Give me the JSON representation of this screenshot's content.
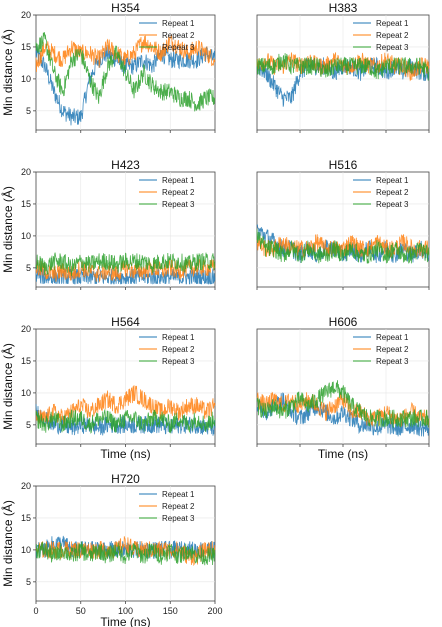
{
  "colors": {
    "repeat_1": "#1f77b4",
    "repeat_2": "#ff7f0e",
    "repeat_3": "#2ca02c"
  },
  "chart_data": [
    {
      "type": "line",
      "title": "H354",
      "ylabel": "Min distance (Å)",
      "xlabel": "",
      "xlim": [
        0,
        200
      ],
      "ylim": [
        2,
        20
      ],
      "yticks": [
        5,
        10,
        15,
        20
      ],
      "xticks": [],
      "series": [
        {
          "name": "Repeat 1",
          "x": [
            0,
            10,
            20,
            30,
            40,
            50,
            60,
            70,
            80,
            90,
            100,
            110,
            120,
            130,
            140,
            150,
            160,
            170,
            180,
            190,
            200
          ],
          "values": [
            14,
            12,
            8,
            5,
            4,
            4,
            10,
            13,
            14,
            13,
            12,
            12,
            13,
            12,
            14,
            13,
            13,
            13,
            13,
            14,
            13
          ]
        },
        {
          "name": "Repeat 2",
          "x": [
            0,
            10,
            20,
            30,
            40,
            50,
            60,
            70,
            80,
            90,
            100,
            110,
            120,
            130,
            140,
            150,
            160,
            170,
            180,
            190,
            200
          ],
          "values": [
            12,
            15,
            14,
            13,
            15,
            14,
            14,
            13,
            15,
            14,
            13,
            14,
            16,
            15,
            14,
            16,
            15,
            14,
            15,
            14,
            13
          ]
        },
        {
          "name": "Repeat 3",
          "x": [
            0,
            10,
            20,
            30,
            40,
            50,
            60,
            70,
            80,
            90,
            100,
            110,
            120,
            130,
            140,
            150,
            160,
            170,
            180,
            190,
            200
          ],
          "values": [
            15,
            16,
            11,
            8,
            13,
            14,
            10,
            7,
            12,
            14,
            11,
            8,
            11,
            9,
            8,
            8,
            7,
            7,
            6,
            7,
            7
          ]
        }
      ],
      "legend": "top-right"
    },
    {
      "type": "line",
      "title": "H383",
      "ylabel": "",
      "xlabel": "",
      "xlim": [
        0,
        200
      ],
      "ylim": [
        2,
        20
      ],
      "yticks": [],
      "xticks": [],
      "series": [
        {
          "name": "Repeat 1",
          "x": [
            0,
            10,
            20,
            30,
            40,
            50,
            60,
            70,
            80,
            90,
            100,
            110,
            120,
            130,
            140,
            150,
            160,
            170,
            180,
            190,
            200
          ],
          "values": [
            12,
            11,
            9,
            7,
            7,
            11,
            12,
            12,
            12,
            11,
            12,
            12,
            11,
            12,
            12,
            11,
            12,
            11,
            12,
            11,
            11
          ]
        },
        {
          "name": "Repeat 2",
          "x": [
            0,
            10,
            20,
            30,
            40,
            50,
            60,
            70,
            80,
            90,
            100,
            110,
            120,
            130,
            140,
            150,
            160,
            170,
            180,
            190,
            200
          ],
          "values": [
            12,
            13,
            12,
            12,
            13,
            12,
            13,
            12,
            12,
            13,
            12,
            12,
            13,
            12,
            12,
            13,
            12,
            12,
            11,
            12,
            12
          ]
        },
        {
          "name": "Repeat 3",
          "x": [
            0,
            10,
            20,
            30,
            40,
            50,
            60,
            70,
            80,
            90,
            100,
            110,
            120,
            130,
            140,
            150,
            160,
            170,
            180,
            190,
            200
          ],
          "values": [
            12,
            12,
            12,
            13,
            12,
            12,
            12,
            12,
            11,
            12,
            12,
            12,
            12,
            12,
            11,
            12,
            12,
            12,
            12,
            12,
            11
          ]
        }
      ],
      "legend": "top-right"
    },
    {
      "type": "line",
      "title": "H423",
      "ylabel": "Min distance (Å)",
      "xlabel": "",
      "xlim": [
        0,
        200
      ],
      "ylim": [
        2,
        20
      ],
      "yticks": [
        5,
        10,
        15,
        20
      ],
      "xticks": [],
      "series": [
        {
          "name": "Repeat 1",
          "x": [
            0,
            10,
            20,
            30,
            40,
            50,
            60,
            70,
            80,
            90,
            100,
            110,
            120,
            130,
            140,
            150,
            160,
            170,
            180,
            190,
            200
          ],
          "values": [
            4,
            3.5,
            3.5,
            3.5,
            3.5,
            3.5,
            3.5,
            3.5,
            3.5,
            3.5,
            3.5,
            3.5,
            3.5,
            3.5,
            3.5,
            3.5,
            3.5,
            3.5,
            3.5,
            3.5,
            3.5
          ]
        },
        {
          "name": "Repeat 2",
          "x": [
            0,
            10,
            20,
            30,
            40,
            50,
            60,
            70,
            80,
            90,
            100,
            110,
            120,
            130,
            140,
            150,
            160,
            170,
            180,
            190,
            200
          ],
          "values": [
            5,
            4.5,
            4,
            4.5,
            4,
            5,
            4.5,
            4,
            4.5,
            4,
            5,
            4.5,
            4.5,
            5,
            4.5,
            5,
            4.5,
            5,
            5,
            5,
            5
          ]
        },
        {
          "name": "Repeat 3",
          "x": [
            0,
            10,
            20,
            30,
            40,
            50,
            60,
            70,
            80,
            90,
            100,
            110,
            120,
            130,
            140,
            150,
            160,
            170,
            180,
            190,
            200
          ],
          "values": [
            6,
            5,
            6,
            6,
            5,
            6,
            5.5,
            6,
            6,
            5.5,
            6,
            6,
            6,
            5.5,
            6,
            6,
            6,
            5.5,
            6,
            6,
            6
          ]
        }
      ],
      "legend": "top-right"
    },
    {
      "type": "line",
      "title": "H516",
      "ylabel": "",
      "xlabel": "",
      "xlim": [
        0,
        200
      ],
      "ylim": [
        2,
        20
      ],
      "yticks": [],
      "xticks": [],
      "series": [
        {
          "name": "Repeat 1",
          "x": [
            0,
            10,
            20,
            30,
            40,
            50,
            60,
            70,
            80,
            90,
            100,
            110,
            120,
            130,
            140,
            150,
            160,
            170,
            180,
            190,
            200
          ],
          "values": [
            11,
            10,
            9,
            8,
            8,
            7,
            8,
            7,
            8,
            8,
            7,
            8,
            7,
            8,
            7,
            8,
            7,
            8,
            7,
            8,
            7
          ]
        },
        {
          "name": "Repeat 2",
          "x": [
            0,
            10,
            20,
            30,
            40,
            50,
            60,
            70,
            80,
            90,
            100,
            110,
            120,
            130,
            140,
            150,
            160,
            170,
            180,
            190,
            200
          ],
          "values": [
            9,
            8,
            8,
            9,
            8,
            8,
            8,
            9,
            8,
            8,
            8,
            9,
            8,
            8,
            9,
            8,
            8,
            9,
            8,
            8,
            8
          ]
        },
        {
          "name": "Repeat 3",
          "x": [
            0,
            10,
            20,
            30,
            40,
            50,
            60,
            70,
            80,
            90,
            100,
            110,
            120,
            130,
            140,
            150,
            160,
            170,
            180,
            190,
            200
          ],
          "values": [
            10,
            8,
            8,
            7,
            8,
            7,
            8,
            7,
            7,
            8,
            7,
            8,
            7,
            7,
            8,
            7,
            8,
            7,
            7,
            8,
            7
          ]
        }
      ],
      "legend": "top-right"
    },
    {
      "type": "line",
      "title": "H564",
      "ylabel": "Min distance (Å)",
      "xlabel": "Time (ns)",
      "xlim": [
        0,
        200
      ],
      "ylim": [
        2,
        20
      ],
      "yticks": [
        5,
        10,
        15,
        20
      ],
      "xticks": [],
      "series": [
        {
          "name": "Repeat 1",
          "x": [
            0,
            10,
            20,
            30,
            40,
            50,
            60,
            70,
            80,
            90,
            100,
            110,
            120,
            130,
            140,
            150,
            160,
            170,
            180,
            190,
            200
          ],
          "values": [
            7,
            6,
            5,
            5,
            4.5,
            5,
            5,
            4.5,
            5,
            5,
            5,
            5,
            5,
            5,
            5,
            4.5,
            5,
            5,
            5,
            4.5,
            4.5
          ]
        },
        {
          "name": "Repeat 2",
          "x": [
            0,
            10,
            20,
            30,
            40,
            50,
            60,
            70,
            80,
            90,
            100,
            110,
            120,
            130,
            140,
            150,
            160,
            170,
            180,
            190,
            200
          ],
          "values": [
            6,
            6,
            7,
            6,
            7,
            8,
            7,
            8,
            9,
            8,
            9,
            10,
            9,
            8,
            7,
            8,
            7,
            8,
            8,
            7,
            8
          ]
        },
        {
          "name": "Repeat 3",
          "x": [
            0,
            10,
            20,
            30,
            40,
            50,
            60,
            70,
            80,
            90,
            100,
            110,
            120,
            130,
            140,
            150,
            160,
            170,
            180,
            190,
            200
          ],
          "values": [
            6,
            5,
            6,
            5,
            6,
            6,
            5,
            6,
            6,
            5,
            6,
            6,
            5,
            6,
            6,
            5,
            6,
            5,
            6,
            5,
            6
          ]
        }
      ],
      "legend": "top-right"
    },
    {
      "type": "line",
      "title": "H606",
      "ylabel": "",
      "xlabel": "Time (ns)",
      "xlim": [
        0,
        200
      ],
      "ylim": [
        2,
        20
      ],
      "yticks": [],
      "xticks": [],
      "series": [
        {
          "name": "Repeat 1",
          "x": [
            0,
            10,
            20,
            30,
            40,
            50,
            60,
            70,
            80,
            90,
            100,
            110,
            120,
            130,
            140,
            150,
            160,
            170,
            180,
            190,
            200
          ],
          "values": [
            8,
            7,
            8,
            9,
            7,
            6,
            7,
            8,
            7,
            6,
            7,
            6,
            5,
            5,
            4.5,
            5,
            4.5,
            4.5,
            5,
            4.5,
            4.5
          ]
        },
        {
          "name": "Repeat 2",
          "x": [
            0,
            10,
            20,
            30,
            40,
            50,
            60,
            70,
            80,
            90,
            100,
            110,
            120,
            130,
            140,
            150,
            160,
            170,
            180,
            190,
            200
          ],
          "values": [
            9,
            8,
            9,
            8,
            9,
            8,
            9,
            8,
            7,
            8,
            9,
            7,
            7,
            6,
            6,
            7,
            6,
            6,
            7,
            6,
            6
          ]
        },
        {
          "name": "Repeat 3",
          "x": [
            0,
            10,
            20,
            30,
            40,
            50,
            60,
            70,
            80,
            90,
            100,
            110,
            120,
            130,
            140,
            150,
            160,
            170,
            180,
            190,
            200
          ],
          "values": [
            8,
            7,
            8,
            7,
            8,
            9,
            8,
            9,
            10,
            11,
            10,
            8,
            7,
            6,
            6,
            6,
            6,
            6,
            6,
            6,
            6
          ]
        }
      ],
      "legend": "top-right"
    },
    {
      "type": "line",
      "title": "H720",
      "ylabel": "Min distance (Å)",
      "xlabel": "Time (ns)",
      "xlim": [
        0,
        200
      ],
      "ylim": [
        2,
        20
      ],
      "yticks": [
        5,
        10,
        15,
        20
      ],
      "xticks": [
        0,
        50,
        100,
        150,
        200
      ],
      "series": [
        {
          "name": "Repeat 1",
          "x": [
            0,
            10,
            20,
            30,
            40,
            50,
            60,
            70,
            80,
            90,
            100,
            110,
            120,
            130,
            140,
            150,
            160,
            170,
            180,
            190,
            200
          ],
          "values": [
            10,
            10,
            11,
            11,
            10,
            10,
            10,
            10,
            10,
            10,
            10,
            10,
            10,
            10,
            10,
            10,
            10,
            10,
            10,
            10,
            10
          ]
        },
        {
          "name": "Repeat 2",
          "x": [
            0,
            10,
            20,
            30,
            40,
            50,
            60,
            70,
            80,
            90,
            100,
            110,
            120,
            130,
            140,
            150,
            160,
            170,
            180,
            190,
            200
          ],
          "values": [
            10,
            10,
            10,
            10,
            10,
            10,
            10,
            10,
            10,
            10,
            11,
            10,
            10,
            10,
            10,
            10,
            10,
            9,
            9,
            10,
            10
          ]
        },
        {
          "name": "Repeat 3",
          "x": [
            0,
            10,
            20,
            30,
            40,
            50,
            60,
            70,
            80,
            90,
            100,
            110,
            120,
            130,
            140,
            150,
            160,
            170,
            180,
            190,
            200
          ],
          "values": [
            10,
            10,
            9,
            10,
            9,
            10,
            9,
            10,
            9,
            10,
            9,
            10,
            9,
            10,
            9,
            10,
            9,
            10,
            9,
            9,
            9
          ]
        }
      ],
      "legend": "top-right"
    }
  ]
}
